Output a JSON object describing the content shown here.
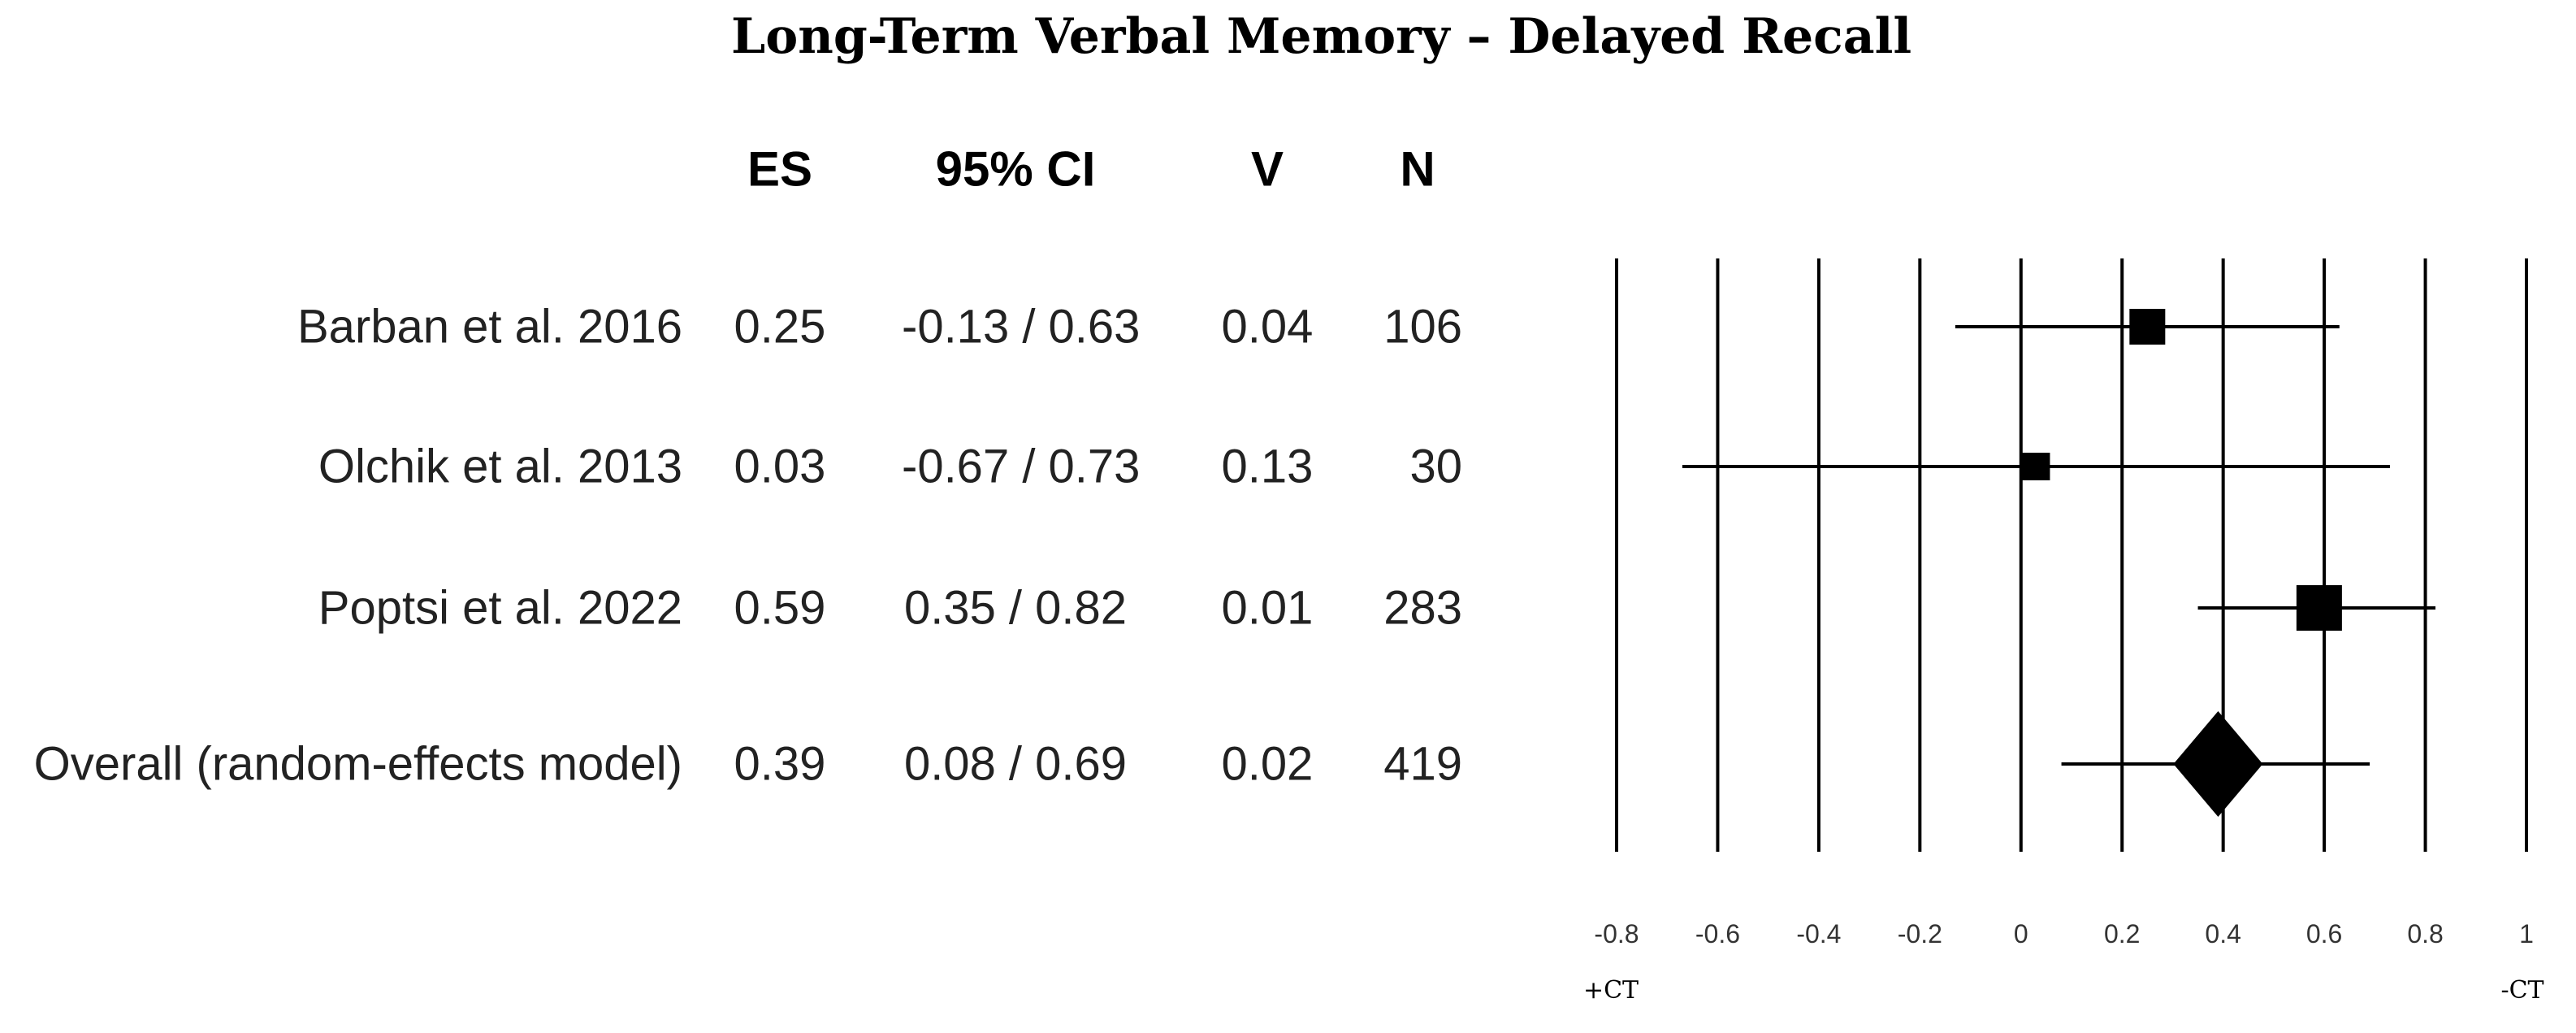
{
  "chart_data": {
    "type": "forest",
    "title": "Long-Term Verbal Memory – Delayed Recall",
    "columns": [
      "ES",
      "95% CI",
      "V",
      "N"
    ],
    "rows": [
      {
        "label": "Barban et al. 2016",
        "es": 0.25,
        "ci_text": "-0.13 / 0.63",
        "ci": [
          -0.13,
          0.63
        ],
        "v": "0.04",
        "n": "106",
        "es_text": "0.25",
        "marker": "square"
      },
      {
        "label": "Olchik et al. 2013",
        "es": 0.03,
        "ci_text": "-0.67 / 0.73",
        "ci": [
          -0.67,
          0.73
        ],
        "v": "0.13",
        "n": "30",
        "es_text": "0.03",
        "marker": "square"
      },
      {
        "label": "Poptsi et al. 2022",
        "es": 0.59,
        "ci_text": "0.35 / 0.82",
        "ci": [
          0.35,
          0.82
        ],
        "v": "0.01",
        "n": "283",
        "es_text": "0.59",
        "marker": "square"
      },
      {
        "label": "Overall (random-effects model)",
        "es": 0.39,
        "ci_text": "0.08 / 0.69",
        "ci": [
          0.08,
          0.69
        ],
        "v": "0.02",
        "n": "419",
        "es_text": "0.39",
        "marker": "diamond"
      }
    ],
    "xlim": [
      -0.8,
      1
    ],
    "xticks": [
      -0.8,
      -0.6,
      -0.4,
      -0.2,
      0,
      0.2,
      0.4,
      0.6,
      0.8,
      1
    ],
    "xtick_labels": [
      "-0.8",
      "-0.6",
      "-0.4",
      "-0.2",
      "0",
      "0.2",
      "0.4",
      "0.6",
      "0.8",
      "1"
    ],
    "grid": true,
    "left_direction_label": "+CT",
    "right_direction_label": "-CT"
  }
}
